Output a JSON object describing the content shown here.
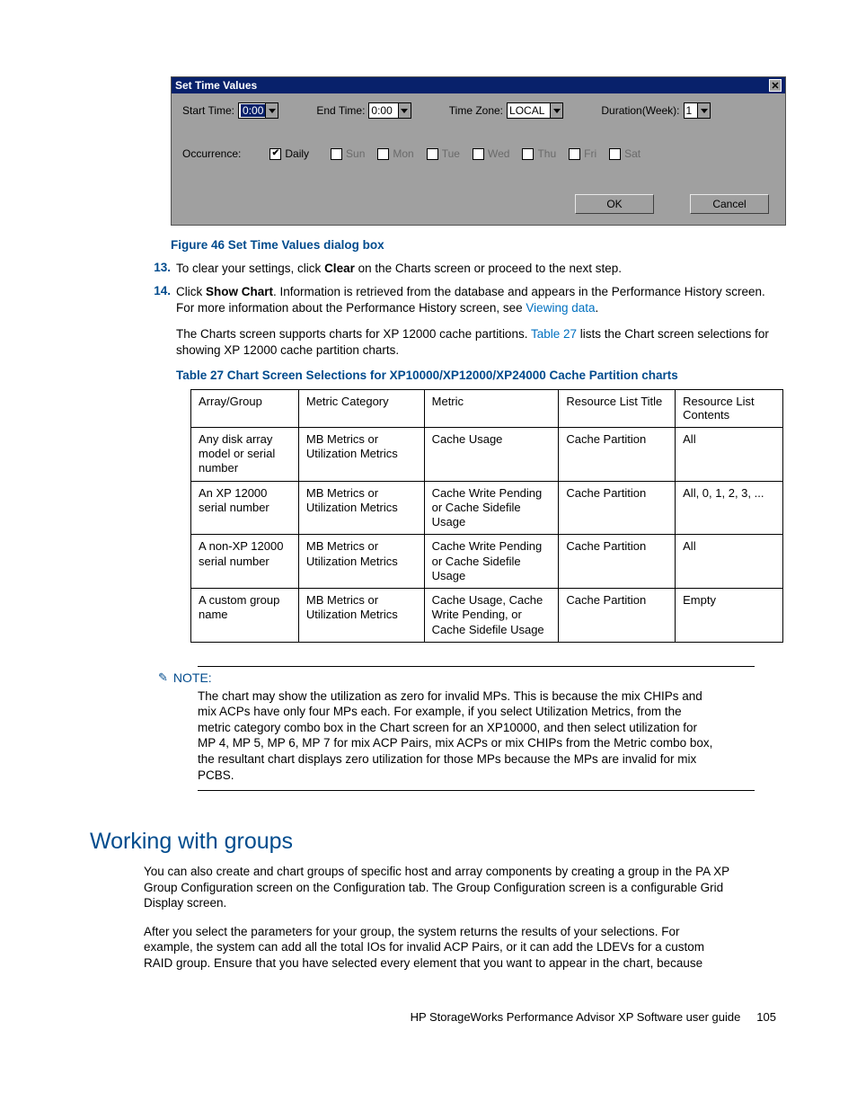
{
  "dialog": {
    "title": "Set Time Values",
    "start_label": "Start Time:",
    "start_value": "0:00",
    "end_label": "End Time:",
    "end_value": "0:00",
    "tz_label": "Time Zone:",
    "tz_value": "LOCAL",
    "dur_label": "Duration(Week):",
    "dur_value": "1",
    "occ_label": "Occurrence:",
    "daily": "Daily",
    "days": [
      "Sun",
      "Mon",
      "Tue",
      "Wed",
      "Thu",
      "Fri",
      "Sat"
    ],
    "ok": "OK",
    "cancel": "Cancel"
  },
  "fig_caption": "Figure 46 Set Time Values dialog box",
  "step13_num": "13.",
  "step13a": "To clear your settings, click ",
  "step13b": "Clear",
  "step13c": " on the Charts screen or proceed to the next step.",
  "step14_num": "14.",
  "step14a": "Click ",
  "step14b": "Show Chart",
  "step14c": ".  Information is retrieved from the database and appears in the Performance History screen.  For more information about the Performance History screen, see ",
  "step14_link": "Viewing data",
  "step14d": ".",
  "para2a": "The Charts screen supports charts for XP 12000 cache partitions.  ",
  "para2_link": "Table 27",
  "para2b": " lists the Chart screen selections for showing XP 12000 cache partition charts.",
  "tbl_caption": "Table 27 Chart Screen Selections for XP10000/XP12000/XP24000 Cache Partition charts",
  "table": {
    "headers": [
      "Array/Group",
      "Metric Category",
      "Metric",
      "Resource List Title",
      "Resource List Contents"
    ],
    "rows": [
      [
        "Any disk array model or serial number",
        "MB Metrics or Utilization Metrics",
        "Cache Usage",
        "Cache Partition",
        "All"
      ],
      [
        "An XP 12000 serial number",
        "MB Metrics or Utilization Metrics",
        "Cache Write Pending or Cache Sidefile Usage",
        "Cache Partition",
        "All, 0, 1, 2, 3, ..."
      ],
      [
        "A non-XP 12000 serial number",
        "MB Metrics or Utilization Metrics",
        "Cache Write Pending or Cache Sidefile Usage",
        "Cache Partition",
        "All"
      ],
      [
        "A custom group name",
        "MB Metrics or Utilization Metrics",
        "Cache Usage, Cache Write Pending, or Cache Sidefile Usage",
        "Cache Partition",
        "Empty"
      ]
    ],
    "col_widths": [
      "120px",
      "140px",
      "150px",
      "130px",
      "120px"
    ]
  },
  "note_label": "NOTE:",
  "note_body": "The chart may show the utilization as zero for invalid MPs.  This is because the mix CHIPs and mix ACPs have only four MPs each.  For example, if you select Utilization Metrics, from the metric category combo box in the Chart screen for an XP10000, and then select utilization for MP 4, MP 5, MP 6, MP 7 for mix ACP Pairs, mix ACPs or mix CHIPs from the Metric combo box, the resultant chart displays zero utilization for those MPs because the MPs are invalid for mix PCBS.",
  "section_h": "Working with groups",
  "sect_p1": "You can also create and chart groups of specific host and array components by creating a group in the PA XP Group Configuration screen on the Configuration tab.  The Group Configuration screen is a configurable Grid Display screen.",
  "sect_p2": "After you select the parameters for your group, the system returns the results of your selections.  For example, the system can add all the total IOs for invalid ACP Pairs, or it can add the LDEVs for a custom RAID group.  Ensure that you have selected every element that you want to appear in the chart, because",
  "footer_text": "HP StorageWorks Performance Advisor XP Software user guide",
  "footer_page": "105",
  "colors": {
    "brand_blue": "#004b8d",
    "link_blue": "#0070c0",
    "dialog_titlebar": "#08216b",
    "dialog_bg": "#a0a0a0"
  }
}
